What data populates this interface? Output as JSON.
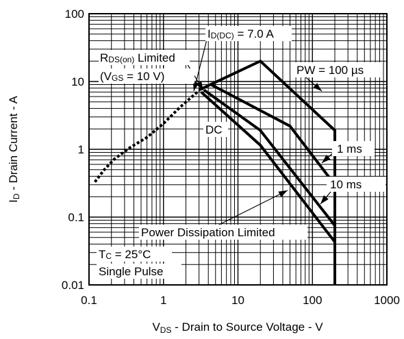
{
  "chart_data": {
    "type": "line",
    "title": "",
    "xlabel": {
      "main": "V",
      "sub": "DS",
      "rest": " - Drain to Source Voltage - V"
    },
    "ylabel": {
      "main": "I",
      "sub": "D",
      "rest": " - Drain Current - A"
    },
    "x_scale": "log",
    "y_scale": "log",
    "xlim": [
      0.1,
      1000
    ],
    "ylim": [
      0.01,
      100
    ],
    "grid": true,
    "x_ticks": [
      {
        "value": 0.1,
        "label": "0.1"
      },
      {
        "value": 1,
        "label": "1"
      },
      {
        "value": 10,
        "label": "10"
      },
      {
        "value": 100,
        "label": "100"
      },
      {
        "value": 1000,
        "label": "1000"
      }
    ],
    "y_ticks": [
      {
        "value": 0.01,
        "label": "0.01"
      },
      {
        "value": 0.1,
        "label": "0.1"
      },
      {
        "value": 1,
        "label": "1"
      },
      {
        "value": 10,
        "label": "10"
      },
      {
        "value": 100,
        "label": "100"
      }
    ],
    "series": [
      {
        "label": "PW = 100 µs",
        "style": "solid",
        "x": [
          3,
          20,
          200,
          200
        ],
        "y": [
          7.5,
          20,
          1.9,
          0.01
        ]
      },
      {
        "label": "1 ms",
        "style": "solid",
        "x": [
          4.2,
          50,
          200
        ],
        "y": [
          9.2,
          2.2,
          0.3
        ]
      },
      {
        "label": "10 ms",
        "style": "solid",
        "x": [
          3.5,
          20,
          200
        ],
        "y": [
          7.5,
          1.9,
          0.075
        ]
      },
      {
        "label": "DC",
        "style": "solid",
        "x": [
          3.2,
          20,
          200
        ],
        "y": [
          7,
          1.15,
          0.043
        ]
      },
      {
        "label": "RDS(on) Limited",
        "style": "dashed",
        "x": [
          0.12,
          0.16,
          0.22,
          0.35,
          0.6,
          1.0,
          1.6,
          2.3,
          3.0
        ],
        "y": [
          0.33,
          0.5,
          0.72,
          1.05,
          1.5,
          2.4,
          4.0,
          5.7,
          7.3
        ]
      }
    ],
    "annotations": {
      "id_dc": {
        "main": "I",
        "sub": "D(DC)",
        "rest": " = 7.0 A"
      },
      "rds_on": {
        "main": "R",
        "sub": "DS(on)",
        "rest": " Limited"
      },
      "vgs": {
        "main": "(V",
        "sub": "GS",
        "rest": " = 10 V)"
      },
      "pw": "PW = 100 µs",
      "dc": "DC",
      "one_ms": "1 ms",
      "ten_ms": "10 ms",
      "power_dissipation": "Power Dissipation Limited",
      "tc": {
        "main": "T",
        "sub": "C",
        "rest": " = 25°C"
      },
      "single_pulse": "Single Pulse"
    }
  }
}
